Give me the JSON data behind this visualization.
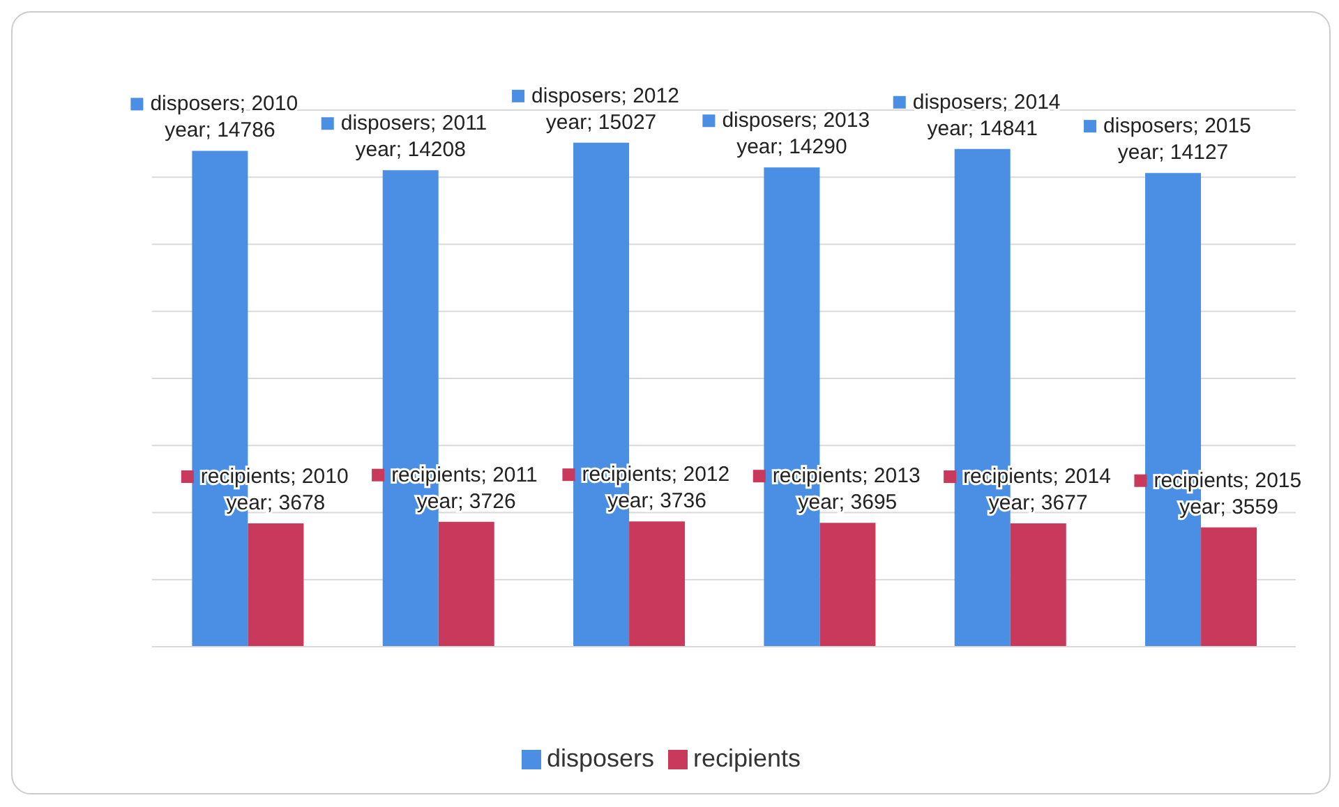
{
  "chart_data": {
    "type": "bar",
    "categories": [
      null,
      null,
      null,
      null,
      null,
      null
    ],
    "series": [
      {
        "name": "disposers",
        "color": "#4a8fe3",
        "values": [
          14786,
          14208,
          15027,
          14290,
          14841,
          14127
        ],
        "value_labels": [
          "disposers; 2010 year; 14786",
          "disposers; 2011 year; 14208",
          "disposers; 2012 year; 15027",
          "disposers; 2013 year; 14290",
          "disposers; 2014 year; 14841",
          "disposers; 2015 year; 14127"
        ]
      },
      {
        "name": "recipients",
        "color": "#c9395b",
        "values": [
          3678,
          3726,
          3736,
          3695,
          3677,
          3559
        ],
        "value_labels": [
          "recipients; 2010 year; 3678",
          "recipients; 2011 year; 3726",
          "recipients; 2012 year; 3736",
          "recipients; 2013 year; 3695",
          "recipients; 2014 year; 3677",
          "recipients; 2015 year; 3559"
        ]
      }
    ],
    "grid": "y",
    "legend": "bottom",
    "tick_labels": false
  }
}
